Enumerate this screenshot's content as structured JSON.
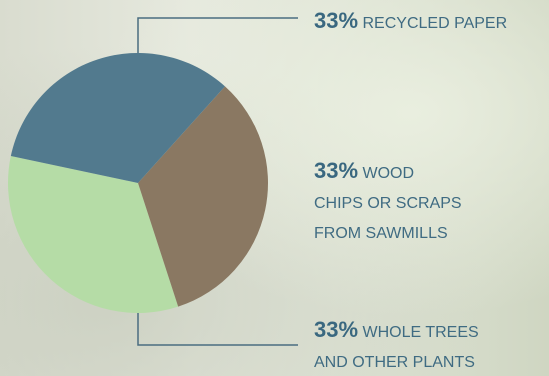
{
  "chart_data": {
    "type": "pie",
    "categories": [
      "RECYCLED PAPER",
      "WOOD CHIPS OR SCRAPS FROM SAWMILLS",
      "WHOLE TREES AND OTHER PLANTS"
    ],
    "values": [
      33,
      33,
      33
    ],
    "value_labels": [
      "33%",
      "33%",
      "33%"
    ],
    "colors": [
      "#527a8e",
      "#8a7862",
      "#b5dca6"
    ]
  }
}
